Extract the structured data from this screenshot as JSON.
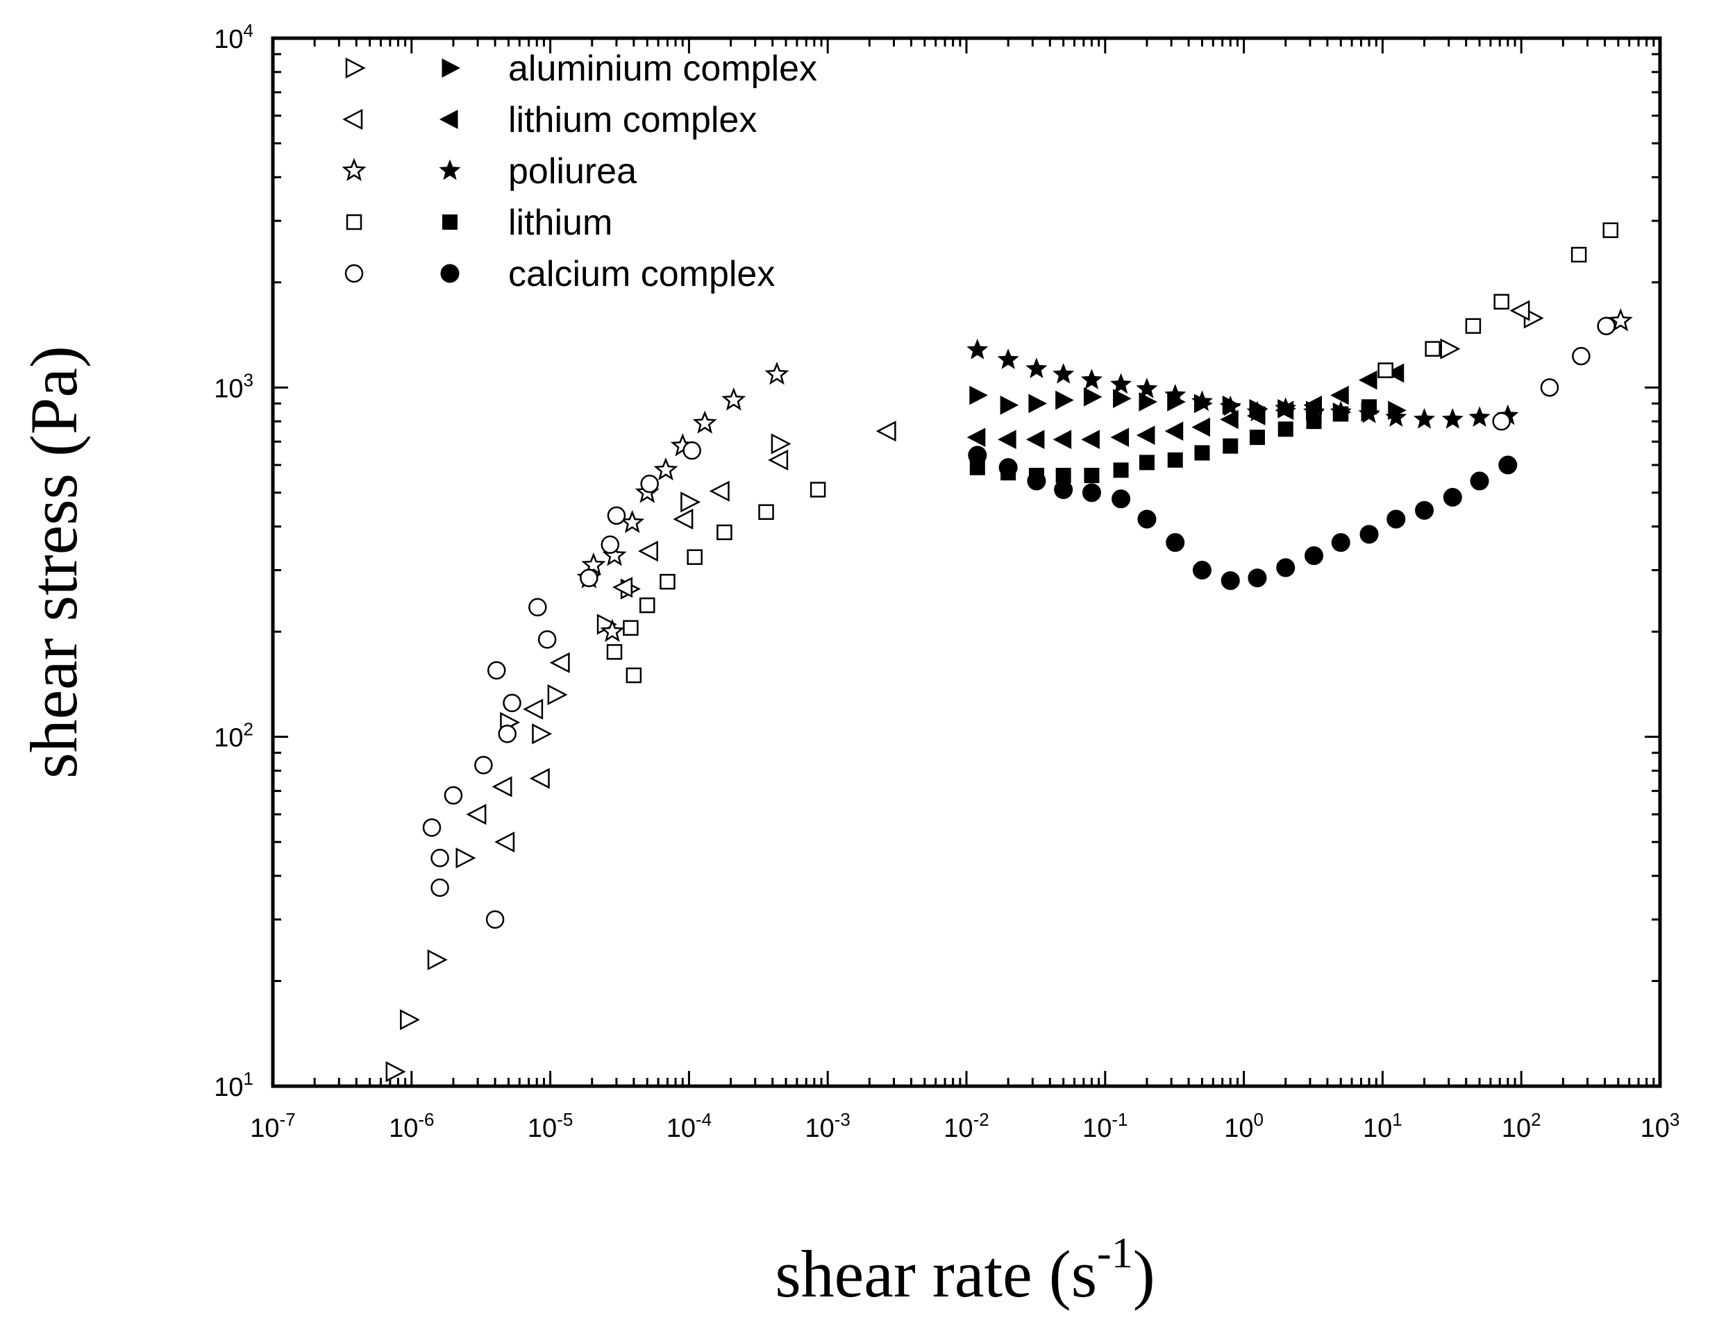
{
  "chart_data": {
    "type": "scatter",
    "title": "",
    "xlabel": "shear rate (s",
    "xlabel_exp": "-1",
    "xlabel_close": ")",
    "ylabel": "shear stress (Pa)",
    "xscale": "log",
    "yscale": "log",
    "xlim": [
      1e-07,
      1000
    ],
    "ylim": [
      10,
      10000
    ],
    "legend_position": "top-left",
    "x_ticks": [
      {
        "base": "10",
        "exp": "-7"
      },
      {
        "base": "10",
        "exp": "-6"
      },
      {
        "base": "10",
        "exp": "-5"
      },
      {
        "base": "10",
        "exp": "-4"
      },
      {
        "base": "10",
        "exp": "-3"
      },
      {
        "base": "10",
        "exp": "-2"
      },
      {
        "base": "10",
        "exp": "-1"
      },
      {
        "base": "10",
        "exp": "0"
      },
      {
        "base": "10",
        "exp": "1"
      },
      {
        "base": "10",
        "exp": "2"
      },
      {
        "base": "10",
        "exp": "3"
      }
    ],
    "y_ticks": [
      {
        "base": "10",
        "exp": "1"
      },
      {
        "base": "10",
        "exp": "2"
      },
      {
        "base": "10",
        "exp": "3"
      },
      {
        "base": "10",
        "exp": "4"
      }
    ],
    "series": [
      {
        "name": "aluminium complex",
        "marker": "triangle-right",
        "open": [
          [
            7.5e-07,
            11
          ],
          [
            9.5e-07,
            15.5
          ],
          [
            1.5e-06,
            23
          ],
          [
            2.4e-06,
            45
          ],
          [
            5e-06,
            110
          ],
          [
            8.5e-06,
            102
          ],
          [
            1.1e-05,
            132
          ],
          [
            2.5e-05,
            210
          ],
          [
            3.7e-05,
            265
          ],
          [
            0.0001,
            470
          ],
          [
            0.00045,
            690
          ],
          [
            30,
            1290
          ],
          [
            120,
            1580
          ]
        ],
        "filled": [
          [
            0.012,
            950
          ],
          [
            0.02,
            890
          ],
          [
            0.032,
            900
          ],
          [
            0.05,
            920
          ],
          [
            0.08,
            940
          ],
          [
            0.13,
            930
          ],
          [
            0.2,
            910
          ],
          [
            0.32,
            910
          ],
          [
            0.5,
            900
          ],
          [
            0.8,
            890
          ],
          [
            1.25,
            870
          ],
          [
            2,
            870
          ],
          [
            3.2,
            860
          ],
          [
            5,
            850
          ],
          [
            8,
            850
          ],
          [
            12.5,
            860
          ]
        ]
      },
      {
        "name": "lithium complex",
        "marker": "triangle-left",
        "open": [
          [
            3e-06,
            60
          ],
          [
            4.6e-06,
            72
          ],
          [
            4.8e-06,
            50
          ],
          [
            7.7e-06,
            120
          ],
          [
            8.6e-06,
            76
          ],
          [
            1.2e-05,
            163
          ],
          [
            3.4e-05,
            268
          ],
          [
            5.2e-05,
            340
          ],
          [
            9.3e-05,
            420
          ],
          [
            0.00017,
            505
          ],
          [
            0.00045,
            620
          ],
          [
            0.0027,
            750
          ],
          [
            100,
            1660
          ]
        ],
        "filled": [
          [
            0.012,
            720
          ],
          [
            0.02,
            710
          ],
          [
            0.032,
            710
          ],
          [
            0.05,
            710
          ],
          [
            0.08,
            710
          ],
          [
            0.13,
            720
          ],
          [
            0.2,
            730
          ],
          [
            0.32,
            750
          ],
          [
            0.5,
            770
          ],
          [
            0.8,
            810
          ],
          [
            1.25,
            830
          ],
          [
            2,
            860
          ],
          [
            3.2,
            890
          ],
          [
            5,
            950
          ],
          [
            8,
            1050
          ],
          [
            12.5,
            1100
          ]
        ]
      },
      {
        "name": "poliurea",
        "marker": "star",
        "open": [
          [
            1.9e-05,
            285
          ],
          [
            2.05e-05,
            310
          ],
          [
            2.8e-05,
            200
          ],
          [
            2.9e-05,
            330
          ],
          [
            3.9e-05,
            410
          ],
          [
            5e-05,
            500
          ],
          [
            6.8e-05,
            580
          ],
          [
            9e-05,
            680
          ],
          [
            0.00013,
            790
          ],
          [
            0.00021,
            920
          ],
          [
            0.00043,
            1090
          ],
          [
            520,
            1550
          ]
        ],
        "filled": [
          [
            0.012,
            1280
          ],
          [
            0.02,
            1200
          ],
          [
            0.032,
            1130
          ],
          [
            0.05,
            1090
          ],
          [
            0.08,
            1050
          ],
          [
            0.13,
            1020
          ],
          [
            0.2,
            990
          ],
          [
            0.32,
            950
          ],
          [
            0.5,
            910
          ],
          [
            0.8,
            880
          ],
          [
            1.25,
            850
          ],
          [
            2,
            870
          ],
          [
            3.2,
            850
          ],
          [
            5,
            850
          ],
          [
            8,
            840
          ],
          [
            12.5,
            820
          ],
          [
            20,
            810
          ],
          [
            32,
            810
          ],
          [
            50,
            820
          ],
          [
            80,
            830
          ]
        ]
      },
      {
        "name": "lithium",
        "marker": "square",
        "open": [
          [
            2.9e-05,
            175
          ],
          [
            3.8e-05,
            205
          ],
          [
            4e-05,
            150
          ],
          [
            5e-05,
            238
          ],
          [
            7e-05,
            278
          ],
          [
            0.00011,
            327
          ],
          [
            0.00018,
            385
          ],
          [
            0.00036,
            440
          ],
          [
            0.00085,
            510
          ],
          [
            10.5,
            1120
          ],
          [
            23,
            1290
          ],
          [
            45,
            1500
          ],
          [
            72,
            1760
          ],
          [
            260,
            2400
          ],
          [
            440,
            2820
          ]
        ],
        "filled": [
          [
            0.012,
            590
          ],
          [
            0.02,
            570
          ],
          [
            0.032,
            560
          ],
          [
            0.05,
            560
          ],
          [
            0.08,
            560
          ],
          [
            0.13,
            580
          ],
          [
            0.2,
            610
          ],
          [
            0.32,
            620
          ],
          [
            0.5,
            650
          ],
          [
            0.8,
            680
          ],
          [
            1.25,
            720
          ],
          [
            2,
            760
          ],
          [
            3.2,
            800
          ],
          [
            5,
            840
          ],
          [
            8,
            880
          ]
        ]
      },
      {
        "name": "calcium complex",
        "marker": "circle",
        "open": [
          [
            1.4e-06,
            55
          ],
          [
            1.6e-06,
            45
          ],
          [
            1.6e-06,
            37
          ],
          [
            2e-06,
            68
          ],
          [
            3.3e-06,
            83
          ],
          [
            4e-06,
            30
          ],
          [
            4.1e-06,
            155
          ],
          [
            4.9e-06,
            102
          ],
          [
            5.3e-06,
            125
          ],
          [
            8.1e-06,
            235
          ],
          [
            9.5e-06,
            190
          ],
          [
            1.9e-05,
            285
          ],
          [
            2.7e-05,
            355
          ],
          [
            3e-05,
            430
          ],
          [
            5.2e-05,
            530
          ],
          [
            0.000105,
            660
          ],
          [
            72,
            800
          ],
          [
            160,
            1000
          ],
          [
            270,
            1230
          ],
          [
            410,
            1500
          ]
        ],
        "filled": [
          [
            0.012,
            640
          ],
          [
            0.02,
            590
          ],
          [
            0.032,
            540
          ],
          [
            0.05,
            510
          ],
          [
            0.08,
            500
          ],
          [
            0.13,
            480
          ],
          [
            0.2,
            420
          ],
          [
            0.32,
            360
          ],
          [
            0.5,
            300
          ],
          [
            0.8,
            280
          ],
          [
            1.25,
            285
          ],
          [
            2,
            305
          ],
          [
            3.2,
            330
          ],
          [
            5,
            360
          ],
          [
            8,
            380
          ],
          [
            12.5,
            420
          ],
          [
            20,
            445
          ],
          [
            32,
            485
          ],
          [
            50,
            540
          ],
          [
            80,
            600
          ]
        ]
      }
    ]
  }
}
